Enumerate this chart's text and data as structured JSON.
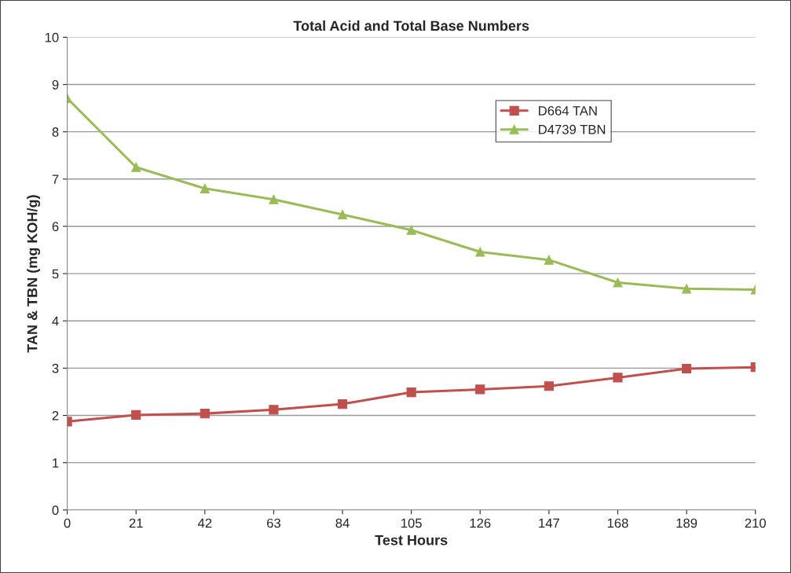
{
  "chart_data": {
    "type": "line",
    "title": "Total Acid and Total Base Numbers",
    "xlabel": "Test Hours",
    "ylabel": "TAN & TBN (mg KOH/g)",
    "x": [
      0,
      21,
      42,
      63,
      84,
      105,
      126,
      147,
      168,
      189,
      210
    ],
    "series": [
      {
        "name": "D664 TAN",
        "color": "#c0504d",
        "marker": "square",
        "values": [
          1.87,
          2.01,
          2.04,
          2.12,
          2.24,
          2.49,
          2.55,
          2.62,
          2.8,
          2.99,
          3.02
        ]
      },
      {
        "name": "D4739 TBN",
        "color": "#9bbb59",
        "marker": "triangle",
        "values": [
          8.71,
          7.25,
          6.8,
          6.57,
          6.25,
          5.92,
          5.46,
          5.29,
          4.81,
          4.68,
          4.66
        ]
      }
    ],
    "xlim": [
      0,
      210
    ],
    "xticks": [
      0,
      21,
      42,
      63,
      84,
      105,
      126,
      147,
      168,
      189,
      210
    ],
    "ylim": [
      0,
      10
    ],
    "yticks": [
      0,
      1,
      2,
      3,
      4,
      5,
      6,
      7,
      8,
      9,
      10
    ],
    "grid": "y",
    "legend": "top right",
    "line_style": "solid"
  }
}
